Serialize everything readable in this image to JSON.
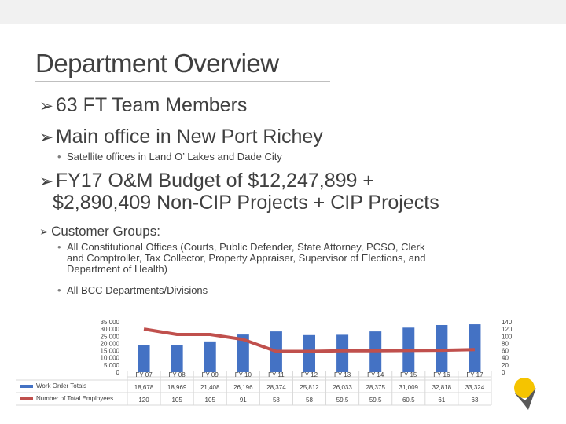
{
  "slide": {
    "title": "Department Overview",
    "bullets": [
      {
        "text": "63 FT  Team Members"
      },
      {
        "text": "Main office in New Port Richey"
      },
      {
        "text": "Satellite offices in Land O’ Lakes and Dade City"
      },
      {
        "text": "FY17 O&M Budget of $12,247,899 +"
      },
      {
        "text": "$2,890,409 Non-CIP Projects + CIP Projects"
      },
      {
        "text": "Customer Groups:"
      },
      {
        "text": "All Constitutional Offices (Courts, Public Defender, State Attorney, PCSO, Clerk"
      },
      {
        "text": "and Comptroller, Tax Collector, Property Appraiser, Supervisor of Elections, and"
      },
      {
        "text": "Department of Health)"
      },
      {
        "text": "All BCC Departments/Divisions"
      }
    ]
  },
  "colors": {
    "bars": "#4472c4",
    "line": "#c0504d",
    "text": "#404040"
  },
  "chart_data": {
    "type": "bar",
    "categories": [
      "FY 07",
      "FY 08",
      "FY 09",
      "FY 10",
      "FY 11",
      "FY 12",
      "FY 13",
      "FY 14",
      "FY 15",
      "FY 16",
      "FY 17"
    ],
    "series": [
      {
        "name": "Work Order Totals",
        "type": "bar",
        "axis": "left",
        "values": [
          18678,
          18969,
          21408,
          26196,
          28374,
          25812,
          26033,
          28375,
          31009,
          32818,
          33324
        ],
        "labels": [
          "18,678",
          "18,969",
          "21,408",
          "26,196",
          "28,374",
          "25,812",
          "26,033",
          "28,375",
          "31,009",
          "32,818",
          "33,324"
        ]
      },
      {
        "name": "Number of Total Employees",
        "type": "line",
        "axis": "right",
        "values": [
          120,
          105,
          105,
          91,
          58,
          58,
          59.5,
          59.5,
          60.5,
          61,
          63
        ],
        "labels": [
          "120",
          "105",
          "105",
          "91",
          "58",
          "58",
          "59.5",
          "59.5",
          "60.5",
          "61",
          "63"
        ]
      }
    ],
    "left_axis": {
      "ylim": [
        0,
        35000
      ],
      "ticks": [
        "0",
        "5,000",
        "10,000",
        "15,000",
        "20,000",
        "25,000",
        "30,000",
        "35,000"
      ]
    },
    "right_axis": {
      "ylim": [
        0,
        140
      ],
      "ticks": [
        "0",
        "20",
        "40",
        "60",
        "80",
        "100",
        "120",
        "140"
      ]
    },
    "legend": "left of data table",
    "grid": false
  }
}
